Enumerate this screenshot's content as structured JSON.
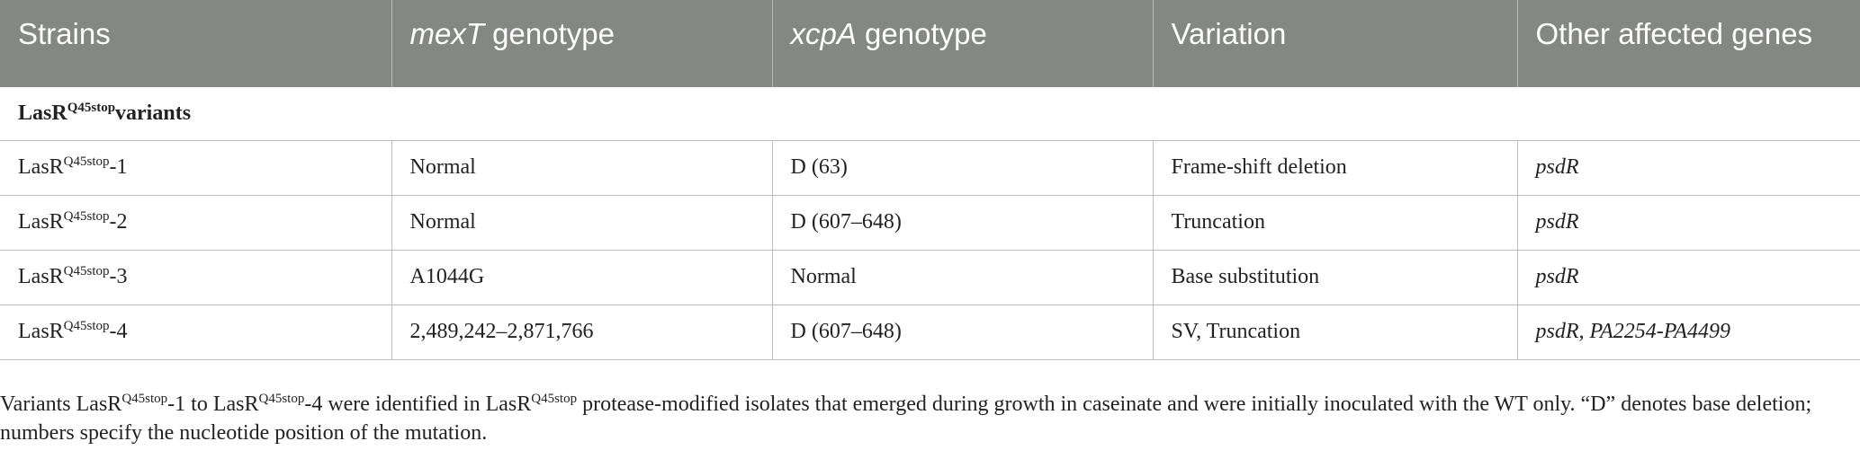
{
  "table": {
    "headers": [
      {
        "italic": "",
        "text": "Strains"
      },
      {
        "italic": "mexT",
        "text": " genotype"
      },
      {
        "italic": "xcpA",
        "text": " genotype"
      },
      {
        "italic": "",
        "text": "Variation"
      },
      {
        "italic": "",
        "text": "Other affected genes"
      }
    ],
    "section_label": {
      "base": "LasR",
      "sup": "Q45stop",
      "suffix": "variants"
    },
    "rows": [
      {
        "strain": {
          "base": "LasR",
          "sup": "Q45stop",
          "suffix": "-1"
        },
        "mexT": "Normal",
        "xcpA": "D (63)",
        "variation": "Frame-shift deletion",
        "other": "psdR"
      },
      {
        "strain": {
          "base": "LasR",
          "sup": "Q45stop",
          "suffix": "-2"
        },
        "mexT": "Normal",
        "xcpA": "D (607–648)",
        "variation": "Truncation",
        "other": "psdR"
      },
      {
        "strain": {
          "base": "LasR",
          "sup": "Q45stop",
          "suffix": "-3"
        },
        "mexT": "A1044G",
        "xcpA": "Normal",
        "variation": "Base substitution",
        "other": "psdR"
      },
      {
        "strain": {
          "base": "LasR",
          "sup": "Q45stop",
          "suffix": "-4"
        },
        "mexT": "2,489,242–2,871,766",
        "xcpA": "D (607–648)",
        "variation": "SV, Truncation",
        "other": "psdR, PA2254-PA4499"
      }
    ]
  },
  "footnote": {
    "part1": "Variants LasR",
    "sup1": "Q45stop",
    "part2": "-1 to LasR",
    "sup2": "Q45stop",
    "part3": "-4 were identified in LasR",
    "sup3": "Q45stop",
    "part4": " protease-modified isolates that emerged during growth in caseinate and were initially inoculated with the WT only. “D” denotes base deletion; numbers specify the nucleotide position of the mutation."
  }
}
